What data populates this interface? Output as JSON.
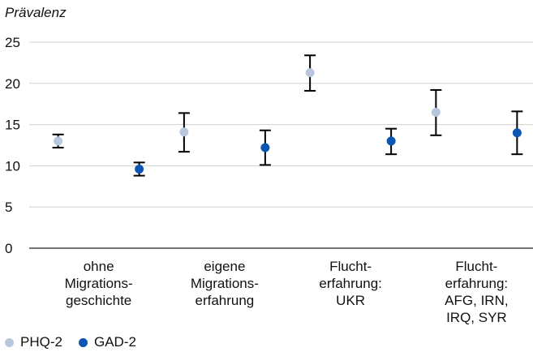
{
  "chart_data": {
    "type": "scatter",
    "ylabel": "Prävalenz",
    "ylim": [
      0,
      25
    ],
    "yticks": [
      0,
      5,
      10,
      15,
      20,
      25
    ],
    "categories": [
      [
        "ohne",
        "Migrations-",
        "geschichte"
      ],
      [
        "eigene",
        "Migrations-",
        "erfahrung"
      ],
      [
        "Flucht-",
        "erfahrung:",
        "UKR"
      ],
      [
        "Flucht-",
        "erfahrung:",
        "AFG, IRN,",
        "IRQ, SYR"
      ]
    ],
    "series": [
      {
        "name": "PHQ-2",
        "color": "#b8c7de",
        "values": [
          13.0,
          14.1,
          21.3,
          16.5
        ],
        "err_low": [
          12.2,
          11.7,
          19.1,
          13.7
        ],
        "err_high": [
          13.8,
          16.4,
          23.4,
          19.2
        ]
      },
      {
        "name": "GAD-2",
        "color": "#0b55b5",
        "values": [
          9.6,
          12.2,
          13.0,
          14.0
        ],
        "err_low": [
          8.8,
          10.1,
          11.4,
          11.4
        ],
        "err_high": [
          10.4,
          14.3,
          14.5,
          16.6
        ]
      }
    ],
    "legend_position": "bottom-left",
    "grid": true
  }
}
